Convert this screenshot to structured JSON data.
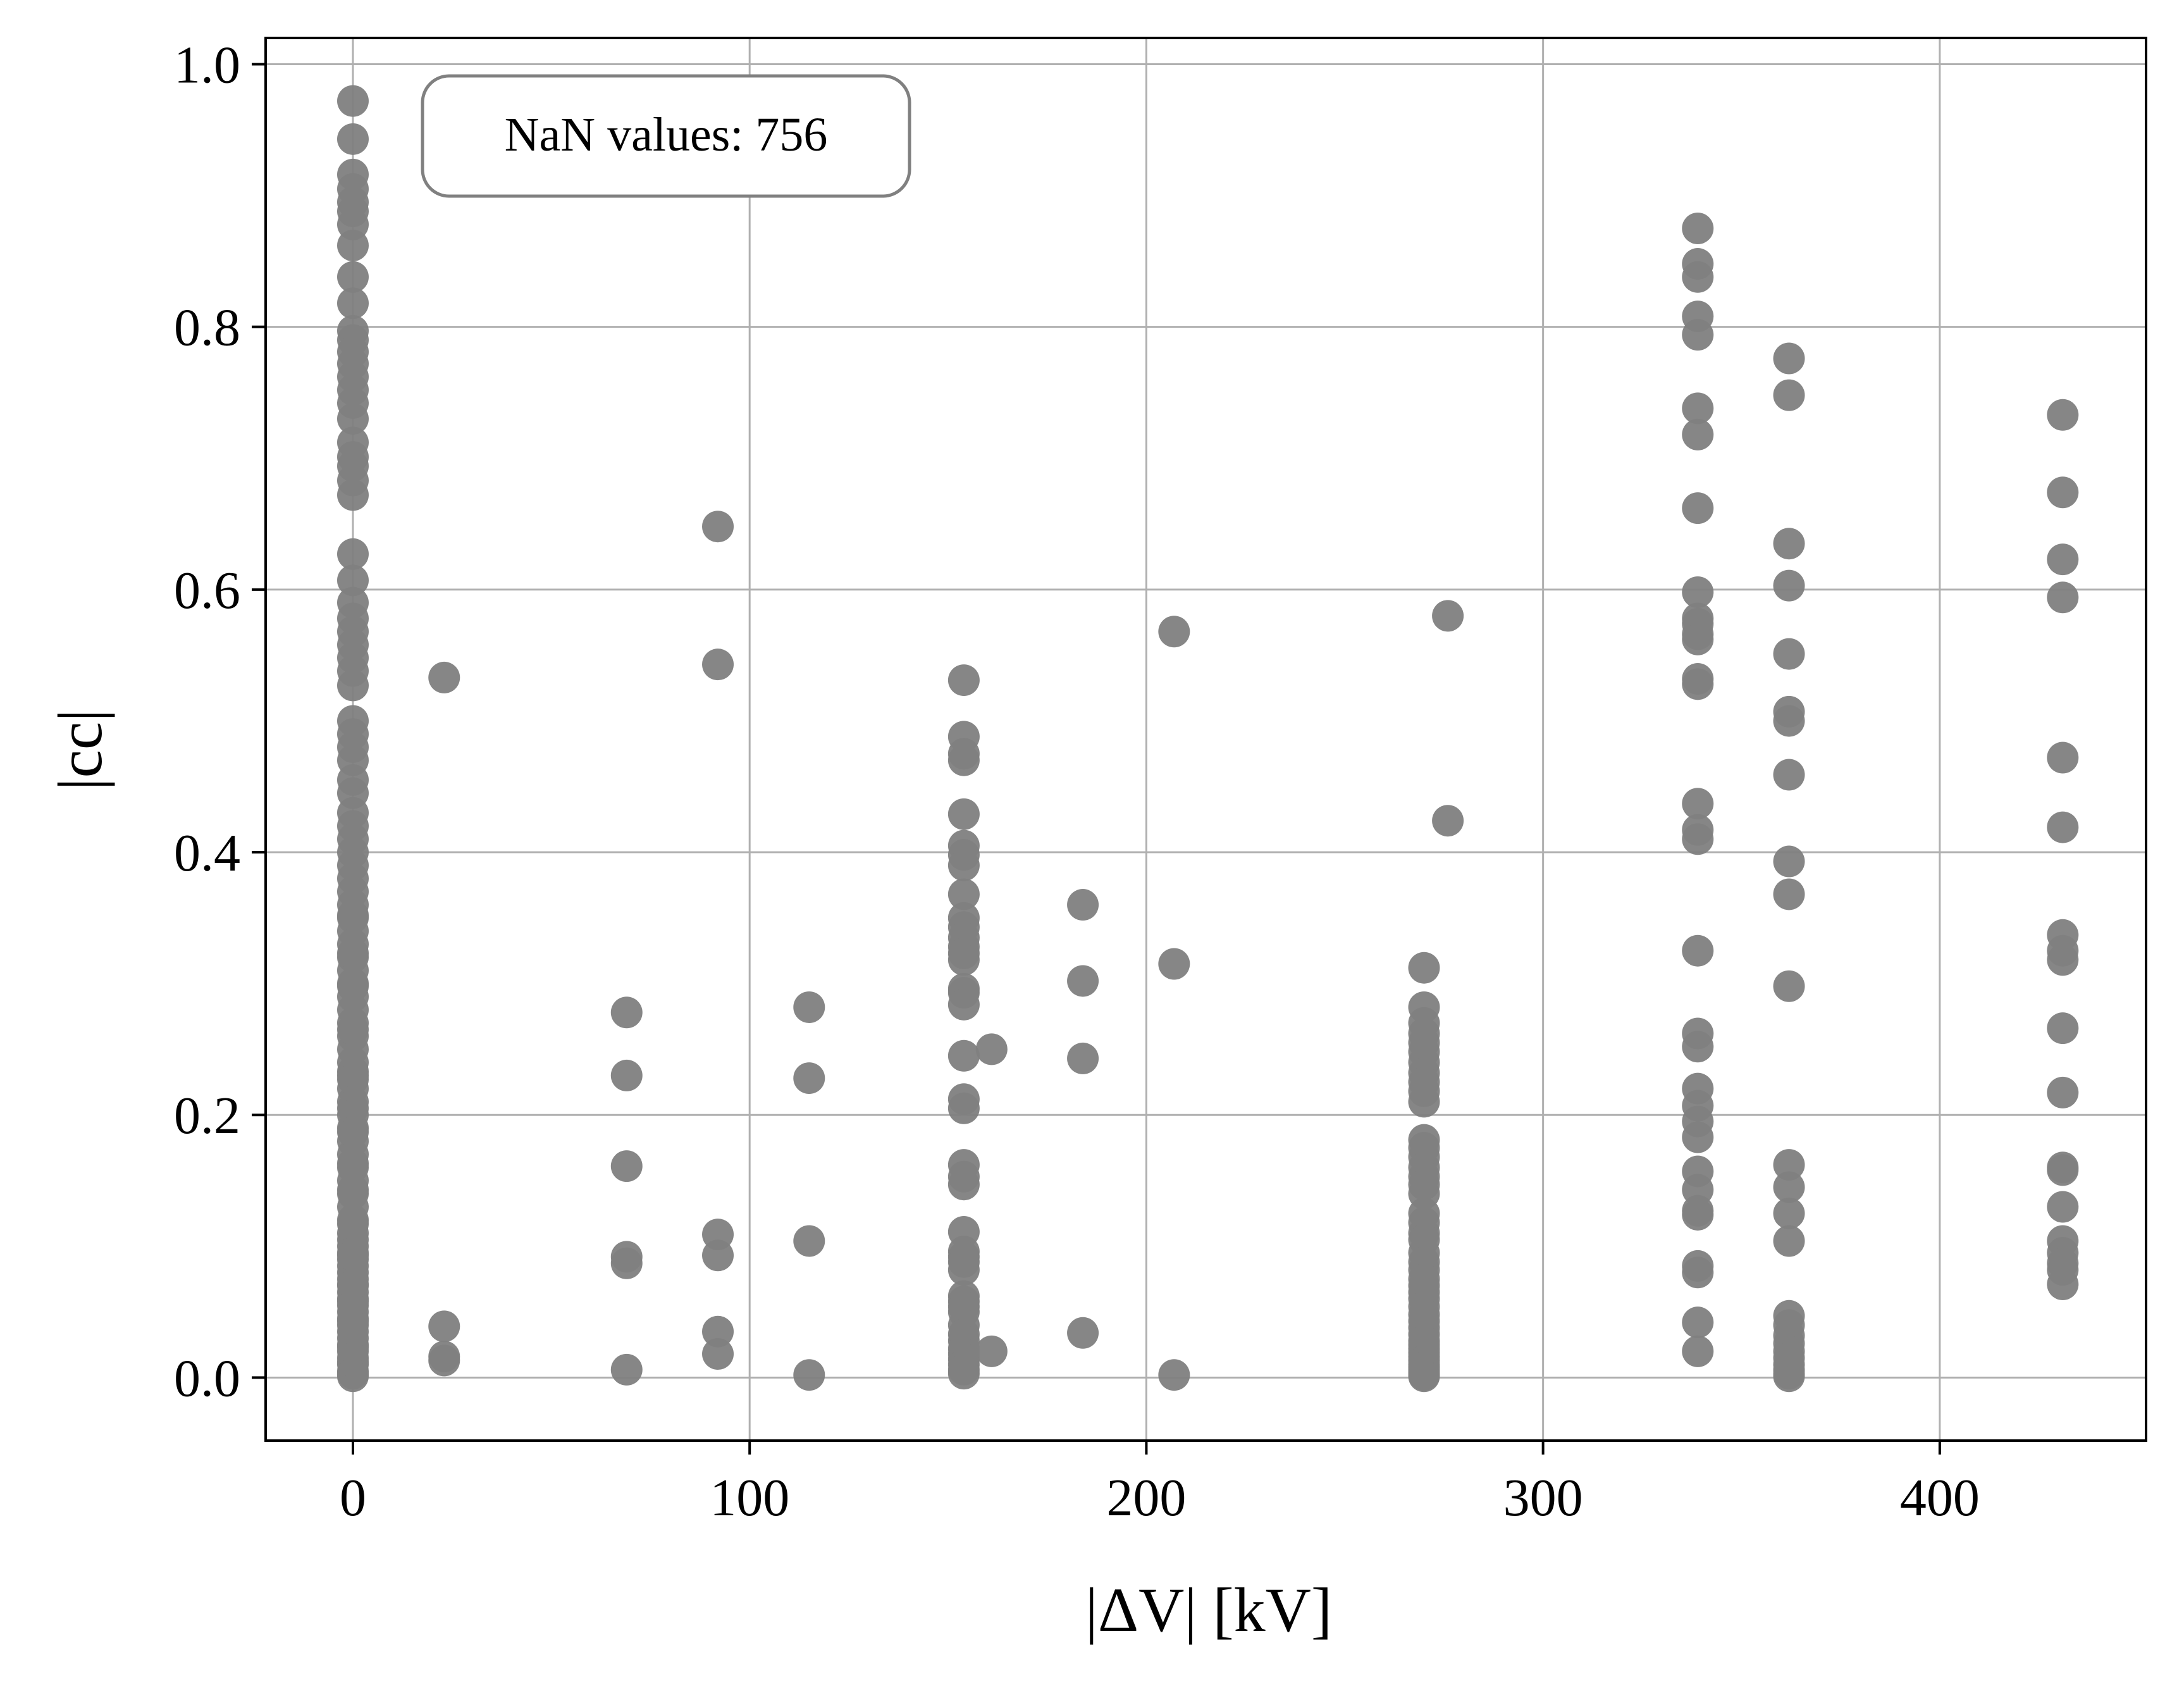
{
  "chart_data": {
    "type": "scatter",
    "title": "",
    "xlabel": "|ΔV| [kV]",
    "ylabel": "|cc|",
    "xlim": [
      -22,
      452
    ],
    "ylim": [
      -0.048,
      1.02
    ],
    "xticks": [
      0,
      100,
      200,
      300,
      400
    ],
    "yticks": [
      0.0,
      0.2,
      0.4,
      0.6,
      0.8,
      1.0
    ],
    "xtick_labels": [
      "0",
      "100",
      "200",
      "300",
      "400"
    ],
    "ytick_labels": [
      "0.0",
      "0.2",
      "0.4",
      "0.6",
      "0.8",
      "1.0"
    ],
    "grid": true,
    "marker_color": "#808080",
    "annotation": "NaN values: 756",
    "annotation_placement": "top-left",
    "x": [
      0,
      0,
      0,
      0,
      0,
      0,
      0,
      0,
      0,
      0,
      0,
      0,
      0,
      0,
      0,
      0,
      0,
      0,
      0,
      0,
      0,
      0,
      0,
      0,
      0,
      0,
      0,
      0,
      0,
      0,
      0,
      0,
      0,
      0,
      0,
      0,
      0,
      0,
      0,
      0,
      0,
      0,
      0,
      0,
      0,
      0,
      0,
      0,
      0,
      0,
      0,
      0,
      0,
      0,
      0,
      0,
      0,
      0,
      0,
      0,
      0,
      0,
      0,
      0,
      0,
      0,
      0,
      0,
      0,
      0,
      0,
      0,
      0,
      0,
      0,
      0,
      0,
      0,
      0,
      0,
      0,
      0,
      0,
      0,
      0,
      0,
      0,
      0,
      0,
      0,
      0,
      0,
      0,
      0,
      0,
      0,
      0,
      0,
      0,
      0,
      0,
      0,
      0,
      0,
      0,
      0,
      0,
      0,
      0,
      0,
      0,
      23,
      23,
      23,
      23,
      69,
      69,
      69,
      69,
      69,
      69,
      92,
      92,
      92,
      92,
      92,
      92,
      115,
      115,
      115,
      115,
      154,
      154,
      154,
      154,
      154,
      154,
      154,
      154,
      154,
      154,
      154,
      154,
      154,
      154,
      154,
      154,
      154,
      154,
      154,
      154,
      154,
      154,
      154,
      154,
      154,
      154,
      154,
      154,
      154,
      154,
      154,
      154,
      154,
      154,
      154,
      154,
      154,
      154,
      154,
      154,
      154,
      154,
      161,
      161,
      184,
      184,
      184,
      184,
      207,
      207,
      207,
      270,
      270,
      270,
      270,
      270,
      270,
      270,
      270,
      270,
      270,
      270,
      270,
      270,
      270,
      270,
      270,
      270,
      270,
      270,
      270,
      270,
      270,
      270,
      270,
      270,
      270,
      270,
      270,
      270,
      270,
      270,
      270,
      270,
      270,
      270,
      270,
      270,
      270,
      270,
      270,
      270,
      270,
      270,
      270,
      270,
      270,
      276,
      276,
      339,
      339,
      339,
      339,
      339,
      339,
      339,
      339,
      339,
      339,
      339,
      339,
      339,
      339,
      339,
      339,
      339,
      339,
      339,
      339,
      339,
      339,
      339,
      339,
      339,
      339,
      339,
      339,
      339,
      339,
      339,
      339,
      339,
      362,
      362,
      362,
      362,
      362,
      362,
      362,
      362,
      362,
      362,
      362,
      362,
      362,
      362,
      362,
      362,
      362,
      362,
      362,
      362,
      362,
      362,
      362,
      362,
      362,
      431,
      431,
      431,
      431,
      431,
      431,
      431,
      431,
      431,
      431,
      431,
      431,
      431,
      431,
      431,
      431,
      431,
      431,
      431
    ],
    "y": [
      0.972,
      0.943,
      0.916,
      0.905,
      0.895,
      0.888,
      0.878,
      0.862,
      0.838,
      0.818,
      0.797,
      0.79,
      0.781,
      0.772,
      0.762,
      0.752,
      0.742,
      0.73,
      0.712,
      0.701,
      0.694,
      0.683,
      0.672,
      0.627,
      0.607,
      0.59,
      0.578,
      0.568,
      0.558,
      0.548,
      0.538,
      0.527,
      0.5,
      0.49,
      0.48,
      0.47,
      0.455,
      0.445,
      0.43,
      0.42,
      0.41,
      0.4,
      0.39,
      0.38,
      0.37,
      0.36,
      0.35,
      0.34,
      0.33,
      0.32,
      0.31,
      0.3,
      0.29,
      0.28,
      0.27,
      0.26,
      0.25,
      0.24,
      0.23,
      0.22,
      0.21,
      0.2,
      0.19,
      0.18,
      0.17,
      0.16,
      0.15,
      0.14,
      0.13,
      0.12,
      0.11,
      0.1,
      0.095,
      0.09,
      0.085,
      0.08,
      0.075,
      0.07,
      0.065,
      0.06,
      0.055,
      0.05,
      0.045,
      0.04,
      0.035,
      0.03,
      0.025,
      0.02,
      0.015,
      0.01,
      0.005,
      0.003,
      0.001,
      0.352,
      0.323,
      0.298,
      0.265,
      0.233,
      0.227,
      0.205,
      0.187,
      0.163,
      0.143,
      0.117,
      0.105,
      0.093,
      0.071,
      0.058,
      0.043,
      0.023,
      0.012,
      0.533,
      0.039,
      0.016,
      0.013,
      0.278,
      0.23,
      0.161,
      0.092,
      0.087,
      0.006,
      0.648,
      0.543,
      0.109,
      0.093,
      0.035,
      0.018,
      0.282,
      0.228,
      0.104,
      0.002,
      0.531,
      0.488,
      0.475,
      0.47,
      0.429,
      0.405,
      0.398,
      0.39,
      0.368,
      0.35,
      0.343,
      0.335,
      0.328,
      0.323,
      0.318,
      0.296,
      0.293,
      0.284,
      0.245,
      0.212,
      0.205,
      0.162,
      0.153,
      0.147,
      0.111,
      0.096,
      0.092,
      0.088,
      0.082,
      0.062,
      0.058,
      0.054,
      0.05,
      0.04,
      0.033,
      0.028,
      0.022,
      0.018,
      0.014,
      0.01,
      0.006,
      0.003,
      0.25,
      0.02,
      0.36,
      0.302,
      0.243,
      0.034,
      0.568,
      0.315,
      0.002,
      0.312,
      0.282,
      0.27,
      0.262,
      0.255,
      0.248,
      0.24,
      0.232,
      0.225,
      0.218,
      0.21,
      0.181,
      0.175,
      0.168,
      0.16,
      0.153,
      0.147,
      0.14,
      0.125,
      0.118,
      0.11,
      0.105,
      0.095,
      0.088,
      0.082,
      0.075,
      0.07,
      0.065,
      0.06,
      0.054,
      0.048,
      0.043,
      0.038,
      0.033,
      0.028,
      0.025,
      0.022,
      0.019,
      0.016,
      0.013,
      0.01,
      0.008,
      0.006,
      0.004,
      0.002,
      0.001,
      0.58,
      0.424,
      0.875,
      0.848,
      0.838,
      0.808,
      0.794,
      0.738,
      0.718,
      0.662,
      0.598,
      0.578,
      0.574,
      0.566,
      0.562,
      0.532,
      0.528,
      0.437,
      0.417,
      0.41,
      0.325,
      0.262,
      0.252,
      0.22,
      0.207,
      0.195,
      0.183,
      0.157,
      0.143,
      0.127,
      0.124,
      0.085,
      0.08,
      0.042,
      0.02,
      0.776,
      0.748,
      0.635,
      0.603,
      0.551,
      0.507,
      0.5,
      0.459,
      0.393,
      0.368,
      0.298,
      0.162,
      0.145,
      0.125,
      0.104,
      0.047,
      0.04,
      0.032,
      0.026,
      0.02,
      0.015,
      0.01,
      0.006,
      0.003,
      0.001,
      0.733,
      0.674,
      0.623,
      0.594,
      0.472,
      0.419,
      0.337,
      0.325,
      0.318,
      0.266,
      0.217,
      0.16,
      0.158,
      0.13,
      0.104,
      0.095,
      0.087,
      0.082,
      0.071
    ]
  }
}
